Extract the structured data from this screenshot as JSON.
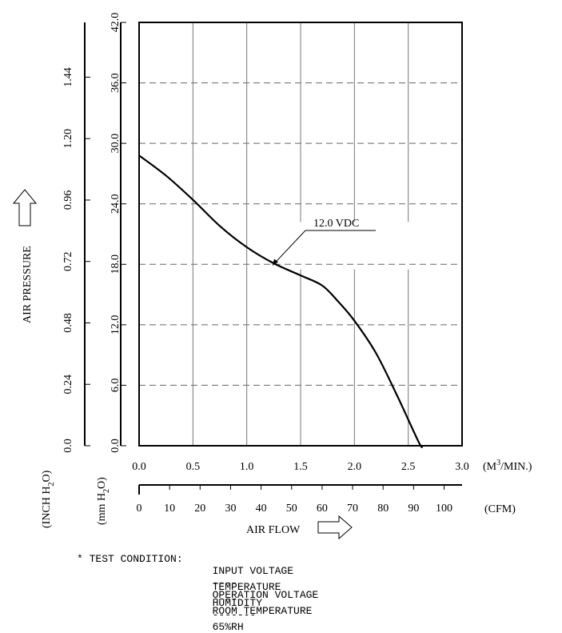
{
  "chart_data": {
    "type": "line",
    "xlabel": "AIR FLOW",
    "x_unit_primary": "(M3/MIN.)",
    "x_unit_primary_parts": [
      "(M",
      "3",
      "/MIN.)"
    ],
    "x_unit_secondary": "(CFM)",
    "ylabel": "AIR PRESSURE",
    "y_unit_inner": "(mm H2O)",
    "y_unit_inner_parts": [
      "(mm H",
      "2",
      "O)"
    ],
    "y_unit_outer": "(INCH H2O)",
    "y_unit_outer_parts": [
      "(INCH H",
      "2",
      "O)"
    ],
    "xlim": [
      0,
      3.0
    ],
    "ylim": [
      0,
      42.0
    ],
    "x_ticks": [
      "0.0",
      "0.5",
      "1.0",
      "1.5",
      "2.0",
      "2.5",
      "3.0"
    ],
    "x_ticks_cfm": [
      "0",
      "10",
      "20",
      "30",
      "40",
      "50",
      "60",
      "70",
      "80",
      "90",
      "100"
    ],
    "cfm_range": [
      0,
      105.9
    ],
    "y_ticks_mm": [
      "0.0",
      "6.0",
      "12.0",
      "18.0",
      "24.0",
      "30.0",
      "36.0",
      "42.0"
    ],
    "y_ticks_inch": [
      "0.0",
      "0.24",
      "0.48",
      "0.72",
      "0.96",
      "1.20",
      "1.44"
    ],
    "inch_range": [
      0,
      1.654
    ],
    "grid": true,
    "series": [
      {
        "name": "12.0 VDC",
        "x": [
          0.0,
          0.25,
          0.5,
          0.75,
          1.0,
          1.25,
          1.5,
          1.7,
          1.85,
          2.0,
          2.2,
          2.4,
          2.6,
          2.63
        ],
        "y": [
          28.8,
          26.8,
          24.4,
          21.8,
          19.7,
          18.1,
          16.9,
          15.9,
          14.3,
          12.4,
          9.2,
          4.9,
          0.3,
          0.0
        ]
      }
    ],
    "annotation": {
      "text": "12.0 VDC",
      "x": 1.24,
      "y": 17.9
    }
  },
  "test_condition": {
    "heading": "* TEST CONDITION:",
    "rows": [
      {
        "label": "INPUT VOLTAGE",
        "leader": "----",
        "value": "OPERATION VOLTAGE"
      },
      {
        "label": "TEMPERATURE",
        "leader": "----",
        "value": "ROOM TEMPERATURE"
      },
      {
        "label": "HUMIDITY",
        "leader": "-------",
        "value": "65%RH"
      }
    ]
  }
}
